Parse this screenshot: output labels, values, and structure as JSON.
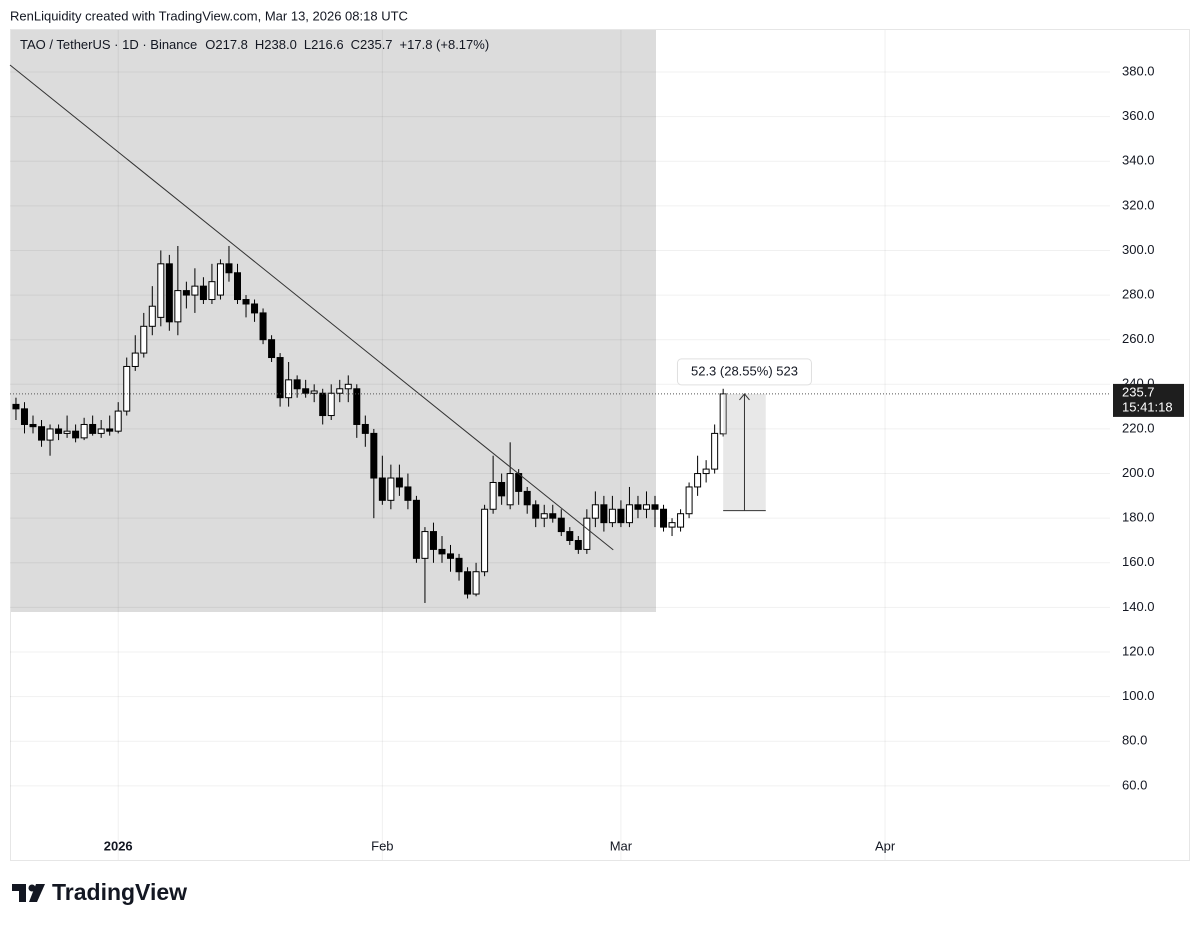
{
  "chart_data": {
    "type": "candlestick",
    "attribution": "RenLiquidity created with TradingView.com, Mar 13, 2026 08:18 UTC",
    "symbol": "TAO / TetherUS · 1D · Binance",
    "legend_items": [
      "O217.8",
      "H238.0",
      "L216.6",
      "C235.7",
      "+17.8 (+8.17%)"
    ],
    "x": [
      -12,
      -11,
      -10,
      -9,
      -8,
      -7,
      -6,
      -5,
      -4,
      -3,
      -2,
      -1,
      0,
      1,
      2,
      3,
      4,
      5,
      6,
      7,
      8,
      9,
      10,
      11,
      12,
      13,
      14,
      15,
      16,
      17,
      18,
      19,
      20,
      21,
      22,
      23,
      24,
      25,
      26,
      27,
      28,
      29,
      30,
      31,
      32,
      33,
      34,
      35,
      36,
      37,
      38,
      39,
      40,
      41,
      42,
      43,
      44,
      45,
      46,
      47,
      48,
      49,
      50,
      51,
      52,
      53,
      54,
      55,
      56,
      57,
      58,
      59,
      60,
      61,
      62,
      63,
      64,
      65,
      66,
      67,
      68,
      69,
      70,
      71
    ],
    "open": [
      231,
      229,
      222,
      221,
      215,
      220,
      218,
      219,
      216,
      222,
      218,
      220,
      219,
      228,
      248,
      254,
      266,
      270,
      294,
      268,
      282,
      280,
      284,
      278,
      280,
      294,
      290,
      278,
      276,
      272,
      260,
      252,
      234,
      242,
      238,
      236,
      236,
      226,
      236,
      238,
      238,
      222,
      218,
      198,
      188,
      198,
      194,
      188,
      162,
      174,
      166,
      164,
      162,
      156,
      146,
      156,
      184,
      196,
      186,
      200,
      192,
      186,
      180,
      182,
      180,
      174,
      170,
      166,
      180,
      186,
      178,
      184,
      178,
      186,
      184,
      186,
      184,
      176,
      176,
      182,
      194,
      200,
      202,
      217.8
    ],
    "high": [
      234,
      232,
      226,
      224,
      222,
      222,
      226,
      222,
      225,
      226,
      224,
      226,
      232,
      252,
      262,
      272,
      284,
      300,
      298,
      302,
      286,
      292,
      288,
      294,
      296,
      302,
      294,
      280,
      278,
      274,
      262,
      254,
      250,
      244,
      242,
      240,
      238,
      240,
      242,
      244,
      240,
      226,
      220,
      208,
      204,
      204,
      200,
      190,
      176,
      178,
      172,
      168,
      164,
      158,
      160,
      186,
      208,
      200,
      214,
      202,
      194,
      188,
      186,
      186,
      184,
      176,
      172,
      184,
      192,
      190,
      190,
      188,
      194,
      190,
      192,
      190,
      186,
      180,
      184,
      196,
      208,
      206,
      222,
      238
    ],
    "low": [
      224,
      218,
      218,
      212,
      208,
      215,
      216,
      214,
      215,
      217,
      216,
      217,
      218,
      226,
      246,
      252,
      262,
      266,
      264,
      262,
      274,
      272,
      276,
      276,
      278,
      286,
      276,
      270,
      268,
      258,
      250,
      230,
      230,
      234,
      234,
      232,
      222,
      224,
      232,
      232,
      216,
      212,
      180,
      186,
      184,
      190,
      184,
      160,
      142,
      160,
      160,
      156,
      152,
      144,
      145,
      154,
      182,
      186,
      184,
      186,
      182,
      176,
      176,
      178,
      172,
      168,
      164,
      164,
      176,
      174,
      176,
      176,
      176,
      180,
      180,
      176,
      174,
      172,
      174,
      180,
      190,
      196,
      200,
      216.6
    ],
    "close": [
      229,
      222,
      221,
      215,
      220,
      218,
      219,
      216,
      222,
      218,
      220,
      219,
      228,
      248,
      254,
      266,
      275,
      294,
      268,
      282,
      280,
      284,
      278,
      286,
      294,
      290,
      278,
      276,
      272,
      260,
      252,
      234,
      242,
      238,
      236,
      237,
      226,
      236,
      238,
      240,
      222,
      218,
      198,
      188,
      198,
      194,
      188,
      162,
      174,
      166,
      164,
      162,
      156,
      146,
      156,
      184,
      196,
      190,
      200,
      192,
      186,
      180,
      182,
      180,
      174,
      170,
      166,
      180,
      186,
      178,
      184,
      178,
      186,
      184,
      186,
      184,
      176,
      178,
      182,
      194,
      200,
      202,
      218,
      235.7
    ],
    "up_color": "#ffffff",
    "down_color": "#000000",
    "xlim": [
      -12.7,
      116.4
    ],
    "xticks": [
      {
        "value": 0,
        "label": "2026"
      },
      {
        "value": 31,
        "label": "Feb"
      },
      {
        "value": 59,
        "label": "Mar"
      },
      {
        "value": 90,
        "label": "Apr"
      }
    ],
    "ylim": [
      26.8,
      398.8
    ],
    "yticks": [
      {
        "value": 60,
        "label": "60.0"
      },
      {
        "value": 80,
        "label": "80.0"
      },
      {
        "value": 100,
        "label": "100.0"
      },
      {
        "value": 120,
        "label": "120.0"
      },
      {
        "value": 140,
        "label": "140.0"
      },
      {
        "value": 160,
        "label": "160.0"
      },
      {
        "value": 180,
        "label": "180.0"
      },
      {
        "value": 200,
        "label": "200.0"
      },
      {
        "value": 220,
        "label": "220.0"
      },
      {
        "value": 240,
        "label": "240.0"
      },
      {
        "value": 260,
        "label": "260.0"
      },
      {
        "value": 280,
        "label": "280.0"
      },
      {
        "value": 300,
        "label": "300.0"
      },
      {
        "value": 320,
        "label": "320.0"
      },
      {
        "value": 340,
        "label": "340.0"
      },
      {
        "value": 360,
        "label": "360.0"
      },
      {
        "value": 380,
        "label": "380.0"
      }
    ],
    "grid": true,
    "trendline": {
      "x": [
        -12.7,
        58.1
      ],
      "y": [
        383.1,
        165.8
      ]
    },
    "measure": {
      "from": 183.4,
      "to": 235.7,
      "x_start": 71,
      "x_end": 76,
      "label": "52.3 (28.55%) 523"
    },
    "last_price": {
      "value": 235.7,
      "label": "235.7",
      "countdown": "15:41:18"
    },
    "brand": "TradingView"
  }
}
